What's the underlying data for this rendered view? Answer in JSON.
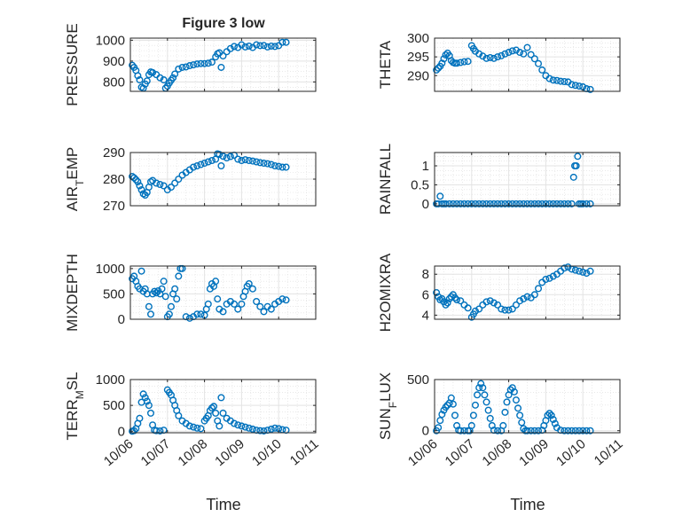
{
  "figure": {
    "title": "Figure 3 low",
    "xlabel": "Time",
    "marker_color": "#0072BD",
    "grid": true,
    "x_ticks": [
      "10/06",
      "10/07",
      "10/08",
      "10/09",
      "10/10",
      "10/11"
    ]
  },
  "chart_data": [
    {
      "type": "scatter",
      "panel": "top-left",
      "ylabel": "PRESSURE",
      "ylabel_sub": "",
      "ylabel_tail": "",
      "ylim": [
        755,
        1010
      ],
      "yticks": [
        800,
        900,
        1000
      ],
      "x": [
        6.05,
        6.1,
        6.15,
        6.2,
        6.25,
        6.3,
        6.35,
        6.4,
        6.45,
        6.5,
        6.55,
        6.6,
        6.7,
        6.8,
        6.9,
        6.95,
        7.0,
        7.05,
        7.1,
        7.15,
        7.2,
        7.3,
        7.4,
        7.5,
        7.6,
        7.7,
        7.8,
        7.9,
        8.0,
        8.1,
        8.2,
        8.3,
        8.35,
        8.4,
        8.45,
        8.5,
        8.6,
        8.7,
        8.8,
        8.9,
        9.0,
        9.1,
        9.2,
        9.3,
        9.4,
        9.5,
        9.6,
        9.7,
        9.8,
        9.9,
        10.0,
        10.1,
        10.2
      ],
      "y": [
        880,
        870,
        855,
        830,
        810,
        775,
        770,
        790,
        805,
        835,
        848,
        845,
        835,
        820,
        810,
        770,
        780,
        795,
        808,
        820,
        838,
        862,
        870,
        872,
        878,
        882,
        886,
        888,
        888,
        890,
        895,
        920,
        935,
        940,
        870,
        925,
        945,
        960,
        970,
        965,
        978,
        968,
        972,
        965,
        978,
        974,
        975,
        968,
        972,
        970,
        974,
        990,
        990
      ]
    },
    {
      "type": "scatter",
      "panel": "top-right",
      "ylabel": "THETA",
      "ylabel_sub": "",
      "ylabel_tail": "",
      "ylim": [
        285.8,
        300
      ],
      "yticks": [
        290,
        295,
        300
      ],
      "x": [
        6.05,
        6.1,
        6.15,
        6.2,
        6.25,
        6.3,
        6.35,
        6.4,
        6.45,
        6.5,
        6.55,
        6.6,
        6.7,
        6.8,
        6.9,
        7.0,
        7.05,
        7.1,
        7.2,
        7.3,
        7.4,
        7.5,
        7.6,
        7.7,
        7.8,
        7.9,
        8.0,
        8.1,
        8.2,
        8.3,
        8.4,
        8.5,
        8.6,
        8.7,
        8.8,
        8.9,
        9.0,
        9.1,
        9.2,
        9.3,
        9.4,
        9.5,
        9.6,
        9.7,
        9.8,
        9.9,
        10.0,
        10.1,
        10.2
      ],
      "y": [
        291.5,
        292,
        292.5,
        293.3,
        294.5,
        295.5,
        296,
        295.3,
        294,
        293.5,
        293.3,
        293.3,
        293.5,
        293.7,
        293.8,
        298,
        297.2,
        296.5,
        295.8,
        295.2,
        294.6,
        294.8,
        294.6,
        295,
        295.3,
        295.8,
        296.2,
        296.6,
        296.8,
        296.2,
        295.8,
        297.5,
        295.6,
        294.5,
        293.2,
        291.5,
        290,
        289.2,
        288.8,
        288.7,
        288.5,
        288.4,
        288.3,
        287.6,
        287.4,
        287.2,
        287,
        286.5,
        286.3
      ]
    },
    {
      "type": "scatter",
      "panel": "middle-left",
      "ylabel": "AIR",
      "ylabel_sub": "T",
      "ylabel_tail": "EMP",
      "ylim": [
        270,
        290
      ],
      "yticks": [
        270,
        280,
        290
      ],
      "x": [
        6.05,
        6.1,
        6.15,
        6.2,
        6.25,
        6.3,
        6.35,
        6.4,
        6.45,
        6.5,
        6.55,
        6.6,
        6.7,
        6.8,
        6.9,
        7.0,
        7.1,
        7.2,
        7.3,
        7.4,
        7.5,
        7.6,
        7.7,
        7.8,
        7.9,
        8.0,
        8.1,
        8.2,
        8.3,
        8.35,
        8.4,
        8.45,
        8.5,
        8.6,
        8.7,
        8.8,
        8.9,
        9.0,
        9.1,
        9.2,
        9.3,
        9.4,
        9.5,
        9.6,
        9.7,
        9.8,
        9.9,
        10.0,
        10.1,
        10.2
      ],
      "y": [
        281,
        280.5,
        279.8,
        279,
        277.5,
        276,
        274.5,
        274,
        275,
        277,
        279,
        279.5,
        278.5,
        278,
        277.5,
        276,
        277,
        278.5,
        280,
        281.5,
        282.5,
        283.5,
        284.5,
        285,
        285.5,
        286,
        286.5,
        287,
        287.5,
        289.5,
        289.3,
        285,
        288.6,
        288,
        288.5,
        289,
        287.5,
        287,
        287.3,
        287,
        286.8,
        286.5,
        286.2,
        286,
        285.8,
        285.5,
        285,
        284.8,
        284.5,
        284.5
      ]
    },
    {
      "type": "scatter",
      "panel": "middle-right",
      "ylabel": "RAINFALL",
      "ylabel_sub": "",
      "ylabel_tail": "",
      "ylim": [
        -0.05,
        1.35
      ],
      "yticks": [
        0,
        0.5,
        1
      ],
      "x": [
        6.05,
        6.1,
        6.15,
        6.2,
        6.25,
        6.3,
        6.4,
        6.5,
        6.6,
        6.7,
        6.8,
        6.9,
        7.0,
        7.1,
        7.2,
        7.3,
        7.4,
        7.5,
        7.6,
        7.7,
        7.8,
        7.9,
        8.0,
        8.1,
        8.2,
        8.3,
        8.4,
        8.5,
        8.6,
        8.7,
        8.8,
        8.9,
        9.0,
        9.1,
        9.2,
        9.3,
        9.4,
        9.5,
        9.6,
        9.7,
        9.75,
        9.78,
        9.82,
        9.86,
        9.9,
        9.95,
        10.0,
        10.1,
        10.2
      ],
      "y": [
        0,
        0,
        0.2,
        0,
        0,
        0,
        0,
        0,
        0,
        0,
        0,
        0,
        0,
        0,
        0,
        0,
        0,
        0,
        0,
        0,
        0,
        0,
        0,
        0,
        0,
        0,
        0,
        0,
        0,
        0,
        0,
        0,
        0,
        0,
        0,
        0,
        0,
        0,
        0,
        0,
        0.7,
        1,
        1,
        1.25,
        0,
        0,
        0,
        0,
        0
      ]
    },
    {
      "type": "scatter",
      "panel": "lower-left",
      "ylabel": "MIXDEPTH",
      "ylabel_sub": "",
      "ylabel_tail": "",
      "ylim": [
        0,
        1050
      ],
      "yticks": [
        0,
        500,
        1000
      ],
      "x": [
        6.05,
        6.1,
        6.15,
        6.2,
        6.25,
        6.3,
        6.35,
        6.4,
        6.45,
        6.5,
        6.55,
        6.6,
        6.65,
        6.7,
        6.75,
        6.8,
        6.85,
        6.9,
        6.95,
        7.0,
        7.05,
        7.1,
        7.15,
        7.2,
        7.25,
        7.3,
        7.35,
        7.4,
        7.5,
        7.6,
        7.7,
        7.8,
        7.9,
        8.0,
        8.05,
        8.1,
        8.15,
        8.2,
        8.25,
        8.3,
        8.35,
        8.4,
        8.5,
        8.6,
        8.7,
        8.8,
        8.9,
        9.0,
        9.05,
        9.1,
        9.15,
        9.2,
        9.3,
        9.4,
        9.5,
        9.6,
        9.7,
        9.8,
        9.9,
        10.0,
        10.1,
        10.2
      ],
      "y": [
        800,
        850,
        750,
        650,
        600,
        950,
        550,
        600,
        500,
        250,
        100,
        500,
        550,
        520,
        560,
        500,
        600,
        750,
        450,
        50,
        100,
        250,
        500,
        600,
        400,
        850,
        1000,
        1000,
        50,
        20,
        50,
        100,
        100,
        80,
        200,
        300,
        600,
        700,
        650,
        750,
        400,
        200,
        150,
        300,
        350,
        300,
        200,
        300,
        450,
        550,
        650,
        700,
        600,
        350,
        250,
        150,
        250,
        200,
        300,
        350,
        400,
        380
      ]
    },
    {
      "type": "scatter",
      "panel": "lower-right",
      "ylabel": "H2OMIXRA",
      "ylabel_sub": "",
      "ylabel_tail": "",
      "ylim": [
        3.6,
        8.8
      ],
      "yticks": [
        4,
        6,
        8
      ],
      "x": [
        6.05,
        6.1,
        6.15,
        6.2,
        6.25,
        6.3,
        6.35,
        6.4,
        6.45,
        6.5,
        6.55,
        6.6,
        6.7,
        6.8,
        6.9,
        7.0,
        7.05,
        7.1,
        7.2,
        7.3,
        7.4,
        7.5,
        7.6,
        7.7,
        7.8,
        7.9,
        8.0,
        8.1,
        8.2,
        8.3,
        8.4,
        8.5,
        8.6,
        8.7,
        8.8,
        8.9,
        9.0,
        9.1,
        9.2,
        9.3,
        9.4,
        9.5,
        9.6,
        9.7,
        9.8,
        9.9,
        10.0,
        10.1,
        10.2
      ],
      "y": [
        6.2,
        5.8,
        5.5,
        5.6,
        5.3,
        5.0,
        5.2,
        5.6,
        5.8,
        6.0,
        5.7,
        5.5,
        5.4,
        5.0,
        4.7,
        3.8,
        4.1,
        4.4,
        4.6,
        5.0,
        5.3,
        5.4,
        5.2,
        5.0,
        4.6,
        4.5,
        4.5,
        4.6,
        5.0,
        5.4,
        5.6,
        5.8,
        5.7,
        6.0,
        6.6,
        7.2,
        7.5,
        7.6,
        7.8,
        8.0,
        8.3,
        8.6,
        8.7,
        8.5,
        8.4,
        8.3,
        8.2,
        8.1,
        8.3
      ]
    },
    {
      "type": "scatter",
      "panel": "bottom-left",
      "ylabel": "TERR",
      "ylabel_sub": "M",
      "ylabel_tail": "SL",
      "ylim": [
        -30,
        1000
      ],
      "yticks": [
        0,
        500,
        1000
      ],
      "x": [
        6.05,
        6.1,
        6.15,
        6.2,
        6.25,
        6.3,
        6.35,
        6.4,
        6.45,
        6.5,
        6.55,
        6.6,
        6.65,
        6.7,
        6.8,
        6.9,
        7.0,
        7.05,
        7.1,
        7.15,
        7.2,
        7.25,
        7.3,
        7.4,
        7.5,
        7.6,
        7.7,
        7.8,
        7.9,
        8.0,
        8.05,
        8.1,
        8.15,
        8.2,
        8.25,
        8.3,
        8.35,
        8.4,
        8.45,
        8.5,
        8.6,
        8.7,
        8.8,
        8.9,
        9.0,
        9.1,
        9.2,
        9.3,
        9.4,
        9.5,
        9.6,
        9.7,
        9.8,
        9.9,
        10.0,
        10.1,
        10.2
      ],
      "y": [
        0,
        10,
        50,
        150,
        250,
        560,
        720,
        650,
        580,
        500,
        350,
        120,
        20,
        10,
        5,
        20,
        800,
        750,
        700,
        600,
        500,
        400,
        300,
        200,
        150,
        100,
        80,
        60,
        50,
        200,
        250,
        300,
        400,
        450,
        480,
        350,
        200,
        100,
        650,
        350,
        250,
        200,
        150,
        120,
        100,
        80,
        60,
        40,
        20,
        10,
        5,
        20,
        40,
        60,
        50,
        30,
        20
      ]
    },
    {
      "type": "scatter",
      "panel": "bottom-right",
      "ylabel": "SUN",
      "ylabel_sub": "F",
      "ylabel_tail": "LUX",
      "ylim": [
        -20,
        500
      ],
      "yticks": [
        0,
        500
      ],
      "x": [
        6.05,
        6.1,
        6.15,
        6.2,
        6.25,
        6.3,
        6.35,
        6.4,
        6.45,
        6.5,
        6.55,
        6.6,
        6.65,
        6.7,
        6.8,
        6.9,
        6.95,
        7.0,
        7.05,
        7.1,
        7.15,
        7.2,
        7.25,
        7.3,
        7.35,
        7.4,
        7.45,
        7.5,
        7.55,
        7.6,
        7.7,
        7.8,
        7.85,
        7.9,
        7.95,
        8.0,
        8.05,
        8.1,
        8.15,
        8.2,
        8.25,
        8.3,
        8.35,
        8.4,
        8.45,
        8.5,
        8.6,
        8.7,
        8.8,
        8.9,
        8.95,
        9.0,
        9.05,
        9.1,
        9.15,
        9.2,
        9.25,
        9.3,
        9.4,
        9.5,
        9.6,
        9.7,
        9.8,
        9.9,
        10.0,
        10.1,
        10.2
      ],
      "y": [
        0,
        30,
        100,
        160,
        200,
        230,
        250,
        270,
        320,
        260,
        150,
        50,
        5,
        0,
        0,
        0,
        0,
        50,
        150,
        250,
        350,
        420,
        460,
        420,
        350,
        280,
        200,
        120,
        50,
        5,
        0,
        0,
        50,
        180,
        280,
        350,
        400,
        420,
        380,
        300,
        220,
        150,
        80,
        20,
        0,
        0,
        0,
        0,
        0,
        5,
        50,
        100,
        150,
        170,
        150,
        110,
        70,
        30,
        5,
        0,
        0,
        0,
        0,
        0,
        0,
        0,
        0
      ]
    }
  ]
}
